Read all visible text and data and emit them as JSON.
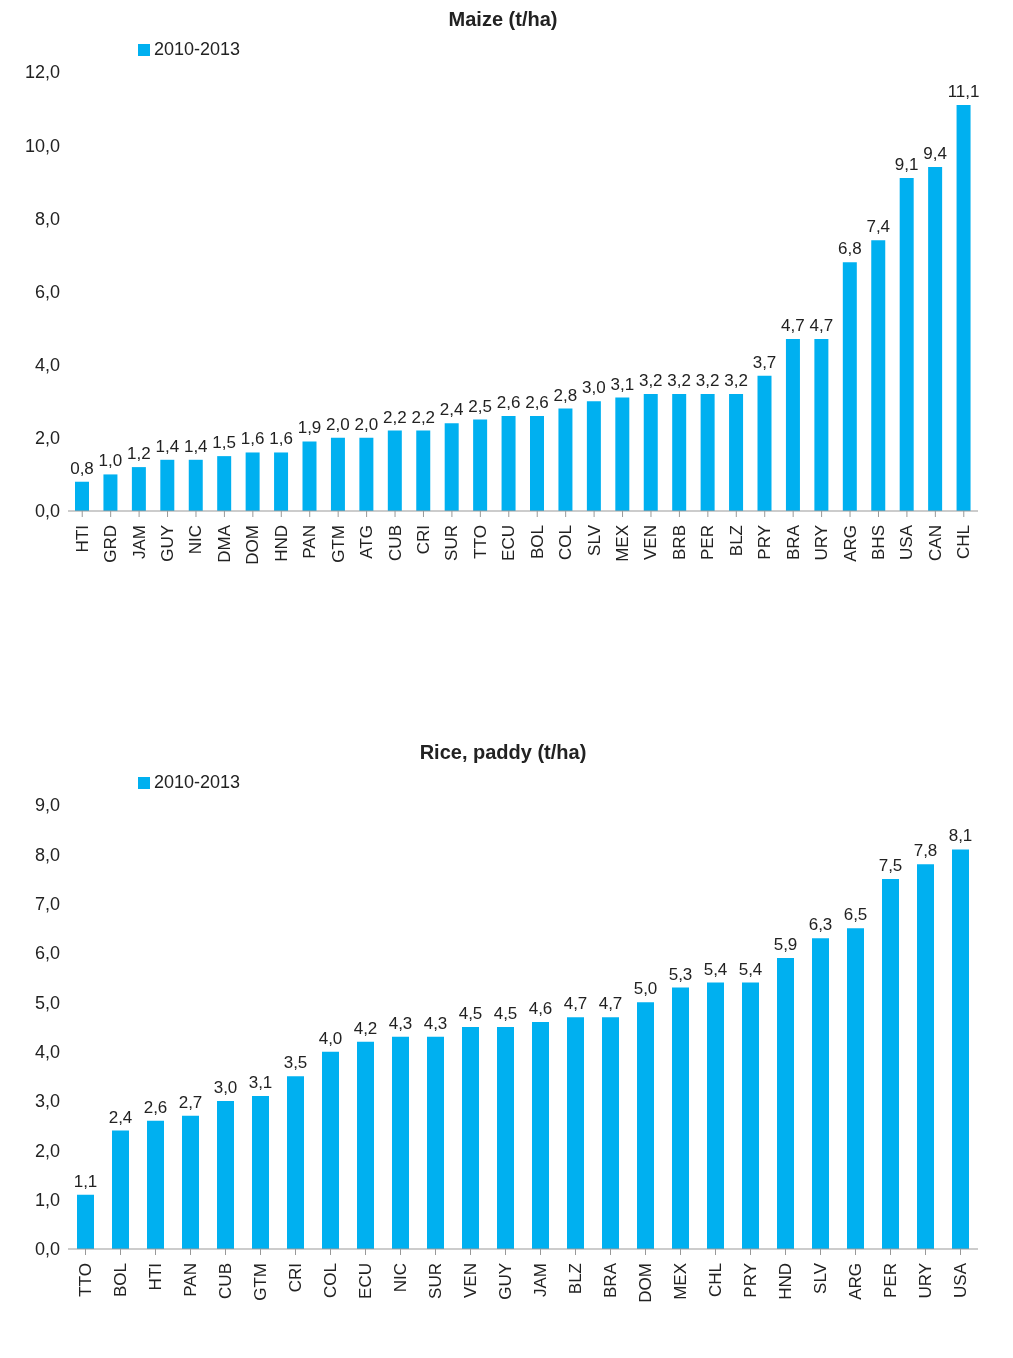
{
  "chart_data": [
    {
      "type": "bar",
      "title": "Maize (t/ha)",
      "categories": [
        "HTI",
        "GRD",
        "JAM",
        "GUY",
        "NIC",
        "DMA",
        "DOM",
        "HND",
        "PAN",
        "GTM",
        "ATG",
        "CUB",
        "CRI",
        "SUR",
        "TTO",
        "ECU",
        "BOL",
        "COL",
        "SLV",
        "MEX",
        "VEN",
        "BRB",
        "PER",
        "BLZ",
        "PRY",
        "BRA",
        "URY",
        "ARG",
        "BHS",
        "USA",
        "CAN",
        "CHL"
      ],
      "series": [
        {
          "name": "2010-2013",
          "color": "#00b0f0",
          "values": [
            0.8,
            1.0,
            1.2,
            1.4,
            1.4,
            1.5,
            1.6,
            1.6,
            1.9,
            2.0,
            2.0,
            2.2,
            2.2,
            2.4,
            2.5,
            2.6,
            2.6,
            2.8,
            3.0,
            3.1,
            3.2,
            3.2,
            3.2,
            3.2,
            3.7,
            4.7,
            4.7,
            6.8,
            7.4,
            9.1,
            9.4,
            11.1
          ],
          "value_labels": [
            "0,8",
            "1,0",
            "1,2",
            "1,4",
            "1,4",
            "1,5",
            "1,6",
            "1,6",
            "1,9",
            "2,0",
            "2,0",
            "2,2",
            "2,2",
            "2,4",
            "2,5",
            "2,6",
            "2,6",
            "2,8",
            "3,0",
            "3,1",
            "3,2",
            "3,2",
            "3,2",
            "3,2",
            "3,7",
            "4,7",
            "4,7",
            "6,8",
            "7,4",
            "9,1",
            "9,4",
            "11,1"
          ]
        }
      ],
      "ylim": [
        0,
        12
      ],
      "yticks": [
        {
          "value": 0,
          "label": "0,0"
        },
        {
          "value": 2,
          "label": "2,0"
        },
        {
          "value": 4,
          "label": "4,0"
        },
        {
          "value": 6,
          "label": "6,0"
        },
        {
          "value": 8,
          "label": "8,0"
        },
        {
          "value": 10,
          "label": "10,0"
        },
        {
          "value": 12,
          "label": "12,0"
        }
      ],
      "grid": false,
      "legend": "top left"
    },
    {
      "type": "bar",
      "title": "Rice,  paddy (t/ha)",
      "categories": [
        "TTO",
        "BOL",
        "HTI",
        "PAN",
        "CUB",
        "GTM",
        "CRI",
        "COL",
        "ECU",
        "NIC",
        "SUR",
        "VEN",
        "GUY",
        "JAM",
        "BLZ",
        "BRA",
        "DOM",
        "MEX",
        "CHL",
        "PRY",
        "HND",
        "SLV",
        "ARG",
        "PER",
        "URY",
        "USA"
      ],
      "series": [
        {
          "name": "2010-2013",
          "color": "#00b0f0",
          "values": [
            1.1,
            2.4,
            2.6,
            2.7,
            3.0,
            3.1,
            3.5,
            4.0,
            4.2,
            4.3,
            4.3,
            4.5,
            4.5,
            4.6,
            4.7,
            4.7,
            5.0,
            5.3,
            5.4,
            5.4,
            5.9,
            6.3,
            6.5,
            7.5,
            7.8,
            8.1
          ],
          "value_labels": [
            "1,1",
            "2,4",
            "2,6",
            "2,7",
            "3,0",
            "3,1",
            "3,5",
            "4,0",
            "4,2",
            "4,3",
            "4,3",
            "4,5",
            "4,5",
            "4,6",
            "4,7",
            "4,7",
            "5,0",
            "5,3",
            "5,4",
            "5,4",
            "5,9",
            "6,3",
            "6,5",
            "7,5",
            "7,8",
            "8,1"
          ]
        }
      ],
      "ylim": [
        0,
        9
      ],
      "yticks": [
        {
          "value": 0,
          "label": "0,0"
        },
        {
          "value": 1,
          "label": "1,0"
        },
        {
          "value": 2,
          "label": "2,0"
        },
        {
          "value": 3,
          "label": "3,0"
        },
        {
          "value": 4,
          "label": "4,0"
        },
        {
          "value": 5,
          "label": "5,0"
        },
        {
          "value": 6,
          "label": "6,0"
        },
        {
          "value": 7,
          "label": "7,0"
        },
        {
          "value": 8,
          "label": "8,0"
        },
        {
          "value": 9,
          "label": "9,0"
        }
      ],
      "grid": false,
      "legend": "top left"
    }
  ]
}
